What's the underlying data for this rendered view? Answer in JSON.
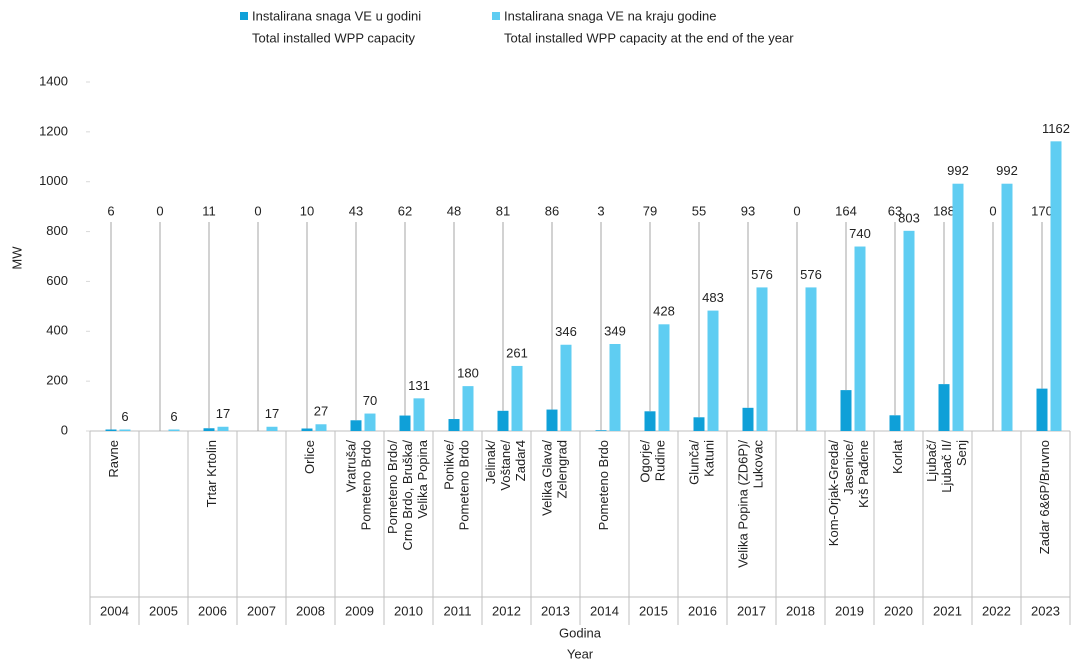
{
  "chart_data": {
    "type": "bar",
    "y_label": "MW",
    "x_label": [
      "Godina",
      "Year"
    ],
    "categories": [
      "2004",
      "2005",
      "2006",
      "2007",
      "2008",
      "2009",
      "2010",
      "2011",
      "2012",
      "2013",
      "2014",
      "2015",
      "2016",
      "2017",
      "2018",
      "2019",
      "2020",
      "2021",
      "2022",
      "2023"
    ],
    "projects": [
      [
        "Ravne"
      ],
      null,
      [
        "Trtar Krtolin"
      ],
      null,
      [
        "Orlice"
      ],
      [
        "Vratruša/",
        "Pometeno Brdo"
      ],
      [
        "Pometeno Brdo/",
        "Crno Brdo, Bruška/",
        "Velika Popina"
      ],
      [
        "Ponikve/",
        "Pometeno Brdo"
      ],
      [
        "Jelinak/",
        "Voštane/",
        "Zadar4"
      ],
      [
        "Velika Glava/",
        "Zelengrad"
      ],
      [
        "Pometeno Brdo"
      ],
      [
        "Ogorje/",
        "Rudine"
      ],
      [
        "Glunča/",
        "Katuni"
      ],
      [
        "Velika Popina (ZD6P)/",
        "Lukovac"
      ],
      null,
      [
        "Kom-Orjak-Greda/",
        "Jasenice/",
        "Krš Pađene"
      ],
      [
        "Korlat"
      ],
      [
        "Ljubač/",
        "Ljubač II/",
        "Senj"
      ],
      null,
      [
        "Zadar 6&6P/Bruvno"
      ]
    ],
    "series": [
      {
        "name": [
          "Instalirana snaga VE u godini",
          "Total installed WPP capacity"
        ],
        "color": "#0fa0d8",
        "values": [
          6,
          0,
          11,
          0,
          10,
          43,
          62,
          48,
          81,
          86,
          3,
          79,
          55,
          93,
          0,
          164,
          63,
          188,
          0,
          170
        ]
      },
      {
        "name": [
          "Instalirana snaga VE na kraju godine",
          "Total installed WPP capacity at the end of the year"
        ],
        "color": "#5fcdf2",
        "values": [
          6,
          6,
          17,
          17,
          27,
          70,
          131,
          180,
          261,
          346,
          349,
          428,
          483,
          576,
          576,
          740,
          803,
          992,
          992,
          1162
        ]
      }
    ],
    "ylim": [
      0,
      1400
    ],
    "yticks": [
      0,
      200,
      400,
      600,
      800,
      1000,
      1200,
      1400
    ],
    "grid": false
  }
}
